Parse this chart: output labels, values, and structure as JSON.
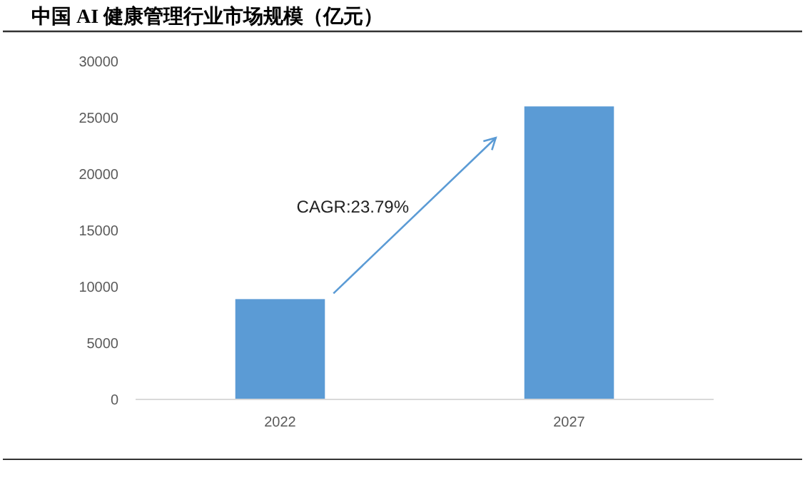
{
  "chart_data": {
    "type": "bar",
    "title": "中国 AI 健康管理行业市场规模（亿元）",
    "categories": [
      "2022",
      "2027"
    ],
    "values": [
      8900,
      26000
    ],
    "color": "#5b9bd5",
    "ylim": [
      0,
      30000
    ],
    "yticks": [
      0,
      5000,
      10000,
      15000,
      20000,
      25000,
      30000
    ],
    "grid": false,
    "annotations": [
      "CAGR:23.79%"
    ]
  }
}
